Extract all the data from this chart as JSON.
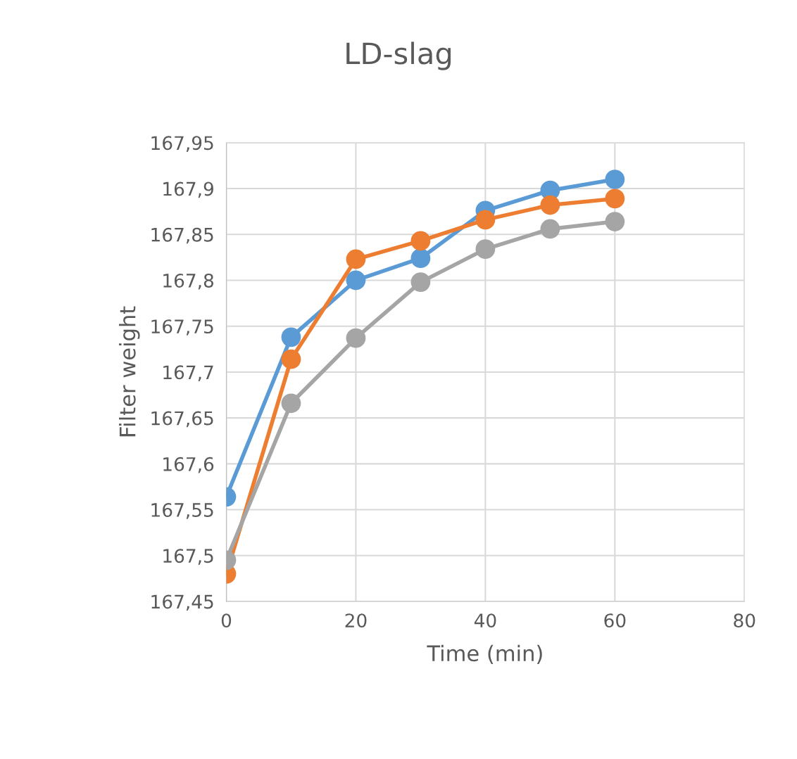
{
  "chart_data": {
    "type": "line",
    "title": "LD-slag",
    "xlabel": "Time (min)",
    "ylabel": "Filter weight",
    "x": [
      0,
      10,
      20,
      30,
      40,
      50,
      60
    ],
    "series": [
      {
        "color": "#5b9bd5",
        "values": [
          167.564,
          167.738,
          167.8,
          167.824,
          167.876,
          167.898,
          167.91
        ]
      },
      {
        "color": "#ed7d31",
        "values": [
          167.48,
          167.714,
          167.823,
          167.843,
          167.866,
          167.882,
          167.889
        ]
      },
      {
        "color": "#a5a5a5",
        "values": [
          167.495,
          167.666,
          167.737,
          167.798,
          167.834,
          167.856,
          167.864
        ]
      }
    ],
    "xlim": [
      0,
      80
    ],
    "xticks": [
      0,
      20,
      40,
      60,
      80
    ],
    "ylim": [
      167.45,
      167.95
    ],
    "yticks": [
      {
        "value": 167.45,
        "label": "167,45"
      },
      {
        "value": 167.5,
        "label": "167,5"
      },
      {
        "value": 167.55,
        "label": "167,55"
      },
      {
        "value": 167.6,
        "label": "167,6"
      },
      {
        "value": 167.65,
        "label": "167,65"
      },
      {
        "value": 167.7,
        "label": "167,7"
      },
      {
        "value": 167.75,
        "label": "167,75"
      },
      {
        "value": 167.8,
        "label": "167,8"
      },
      {
        "value": 167.85,
        "label": "167,85"
      },
      {
        "value": 167.9,
        "label": "167,9"
      },
      {
        "value": 167.95,
        "label": "167,95"
      }
    ],
    "grid": true,
    "marker": "circle",
    "line_style": "solid",
    "legend": false
  }
}
